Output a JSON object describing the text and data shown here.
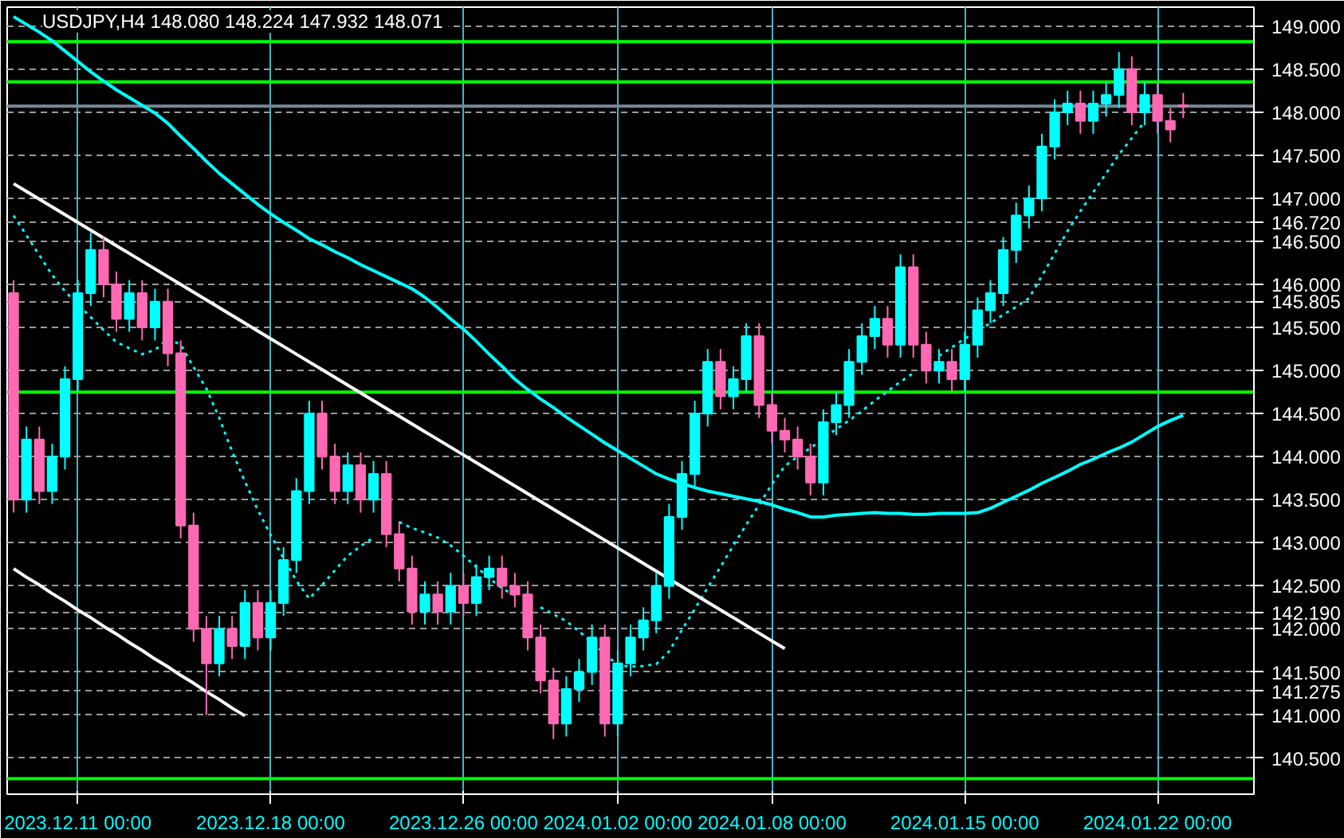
{
  "chart_data": {
    "type": "candlestick",
    "title": "USDJPY,H4  148.080 148.224 147.932 148.071",
    "categories": [
      null,
      null,
      null,
      null,
      null,
      "2023.12.11 00:00",
      null,
      null,
      null,
      null,
      null,
      null,
      null,
      null,
      null,
      null,
      null,
      null,
      null,
      null,
      "2023.12.18 00:00",
      null,
      null,
      null,
      null,
      null,
      null,
      null,
      null,
      null,
      null,
      null,
      null,
      null,
      null,
      "2023.12.26 00:00",
      null,
      null,
      null,
      null,
      null,
      null,
      null,
      null,
      null,
      null,
      null,
      "2024.01.02 00:00",
      null,
      null,
      null,
      null,
      null,
      null,
      null,
      null,
      null,
      null,
      null,
      "2024.01.08 00:00",
      null,
      null,
      null,
      null,
      null,
      null,
      null,
      null,
      null,
      null,
      null,
      null,
      null,
      null,
      "2024.01.15 00:00",
      null,
      null,
      null,
      null,
      null,
      null,
      null,
      null,
      null,
      null,
      null,
      null,
      null,
      null,
      "2024.01.22 00:00",
      null,
      null
    ],
    "ylim": [
      140.08,
      149.22
    ],
    "yticks": [
      {
        "value": 149,
        "label": "149.000"
      },
      {
        "value": 148.5,
        "label": "148.500"
      },
      {
        "value": 148,
        "label": "148.000"
      },
      {
        "value": 147.5,
        "label": "147.500"
      },
      {
        "value": 147,
        "label": "147.000"
      },
      {
        "value": 146.72,
        "label": "146.720"
      },
      {
        "value": 146.5,
        "label": "146.500"
      },
      {
        "value": 146,
        "label": "146.000"
      },
      {
        "value": 145.805,
        "label": "145.805"
      },
      {
        "value": 145.5,
        "label": "145.500"
      },
      {
        "value": 145,
        "label": "145.000"
      },
      {
        "value": 144.5,
        "label": "144.500"
      },
      {
        "value": 144,
        "label": "144.000"
      },
      {
        "value": 143.5,
        "label": "143.500"
      },
      {
        "value": 143,
        "label": "143.000"
      },
      {
        "value": 142.5,
        "label": "142.500"
      },
      {
        "value": 142.19,
        "label": "142.190"
      },
      {
        "value": 142,
        "label": "142.000"
      },
      {
        "value": 141.5,
        "label": "141.500"
      },
      {
        "value": 141.275,
        "label": "141.275"
      },
      {
        "value": 141,
        "label": "141.000"
      },
      {
        "value": 140.5,
        "label": "140.500"
      }
    ],
    "grid": true,
    "ref_lines": [
      {
        "axis": "y",
        "value": 148.353,
        "color": "#00ff00"
      },
      {
        "axis": "y",
        "value": 148.82,
        "color": "#00ff00"
      },
      {
        "axis": "y",
        "value": 144.75,
        "color": "#00ff00"
      },
      {
        "axis": "y",
        "value": 140.26,
        "color": "#00ff00"
      },
      {
        "axis": "y",
        "value": 148.071,
        "color": "#778899"
      }
    ],
    "ohlc": [
      [
        145.9,
        146.05,
        143.35,
        143.5
      ],
      [
        143.5,
        144.35,
        143.35,
        144.2
      ],
      [
        144.2,
        144.35,
        143.45,
        143.6
      ],
      [
        143.6,
        144.15,
        143.45,
        144.0
      ],
      [
        144.0,
        145.05,
        143.85,
        144.9
      ],
      [
        144.9,
        146.05,
        144.75,
        145.9
      ],
      [
        145.9,
        146.6,
        145.75,
        146.4
      ],
      [
        146.4,
        146.55,
        145.85,
        146.0
      ],
      [
        146.0,
        146.15,
        145.45,
        145.6
      ],
      [
        145.6,
        146.05,
        145.45,
        145.9
      ],
      [
        145.9,
        146.05,
        145.35,
        145.5
      ],
      [
        145.5,
        145.95,
        145.35,
        145.8
      ],
      [
        145.8,
        145.95,
        145.05,
        145.2
      ],
      [
        145.2,
        145.35,
        143.05,
        143.2
      ],
      [
        143.2,
        143.35,
        141.85,
        142.0
      ],
      [
        142.0,
        142.15,
        141.0,
        141.6
      ],
      [
        141.6,
        142.15,
        141.45,
        142.0
      ],
      [
        142.0,
        142.15,
        141.65,
        141.8
      ],
      [
        141.8,
        142.45,
        141.65,
        142.3
      ],
      [
        142.3,
        142.45,
        141.75,
        141.9
      ],
      [
        141.9,
        142.45,
        141.75,
        142.3
      ],
      [
        142.3,
        142.95,
        142.15,
        142.8
      ],
      [
        142.8,
        143.75,
        142.65,
        143.6
      ],
      [
        143.6,
        144.65,
        143.45,
        144.5
      ],
      [
        144.5,
        144.65,
        143.85,
        144.0
      ],
      [
        144.0,
        144.15,
        143.45,
        143.6
      ],
      [
        143.6,
        144.05,
        143.45,
        143.9
      ],
      [
        143.9,
        144.05,
        143.35,
        143.5
      ],
      [
        143.5,
        143.95,
        143.35,
        143.8
      ],
      [
        143.8,
        143.95,
        142.95,
        143.1
      ],
      [
        143.1,
        143.25,
        142.55,
        142.7
      ],
      [
        142.7,
        142.85,
        142.05,
        142.2
      ],
      [
        142.2,
        142.55,
        142.05,
        142.4
      ],
      [
        142.4,
        142.55,
        142.05,
        142.2
      ],
      [
        142.2,
        142.65,
        142.05,
        142.5
      ],
      [
        142.5,
        142.65,
        142.15,
        142.3
      ],
      [
        142.3,
        142.75,
        142.15,
        142.6
      ],
      [
        142.6,
        142.85,
        142.45,
        142.7
      ],
      [
        142.7,
        142.85,
        142.35,
        142.5
      ],
      [
        142.5,
        142.65,
        142.25,
        142.4
      ],
      [
        142.4,
        142.55,
        141.75,
        141.9
      ],
      [
        141.9,
        142.05,
        141.25,
        141.4
      ],
      [
        141.4,
        141.55,
        140.72,
        140.9
      ],
      [
        140.9,
        141.45,
        140.75,
        141.3
      ],
      [
        141.3,
        141.65,
        141.15,
        141.5
      ],
      [
        141.5,
        142.05,
        141.35,
        141.9
      ],
      [
        141.9,
        142.05,
        140.75,
        140.9
      ],
      [
        140.9,
        141.75,
        140.75,
        141.6
      ],
      [
        141.6,
        142.05,
        141.45,
        141.9
      ],
      [
        141.9,
        142.25,
        141.75,
        142.1
      ],
      [
        142.1,
        142.65,
        141.95,
        142.5
      ],
      [
        142.5,
        143.45,
        142.35,
        143.3
      ],
      [
        143.3,
        143.95,
        143.15,
        143.8
      ],
      [
        143.8,
        144.65,
        143.65,
        144.5
      ],
      [
        144.5,
        145.25,
        144.35,
        145.1
      ],
      [
        145.1,
        145.25,
        144.55,
        144.7
      ],
      [
        144.7,
        145.05,
        144.55,
        144.9
      ],
      [
        144.9,
        145.55,
        144.75,
        145.4
      ],
      [
        145.4,
        145.55,
        144.45,
        144.6
      ],
      [
        144.6,
        144.75,
        144.15,
        144.3
      ],
      [
        144.3,
        144.45,
        144.05,
        144.2
      ],
      [
        144.2,
        144.35,
        143.85,
        144.0
      ],
      [
        144.0,
        144.15,
        143.55,
        143.7
      ],
      [
        143.7,
        144.55,
        143.55,
        144.4
      ],
      [
        144.4,
        144.75,
        144.25,
        144.6
      ],
      [
        144.6,
        145.25,
        144.45,
        145.1
      ],
      [
        145.1,
        145.55,
        144.95,
        145.4
      ],
      [
        145.4,
        145.75,
        145.25,
        145.6
      ],
      [
        145.6,
        145.75,
        145.15,
        145.3
      ],
      [
        145.3,
        146.35,
        145.15,
        146.2
      ],
      [
        146.2,
        146.35,
        145.15,
        145.3
      ],
      [
        145.3,
        145.45,
        144.85,
        145.0
      ],
      [
        145.0,
        145.25,
        144.85,
        145.1
      ],
      [
        145.1,
        145.25,
        144.75,
        144.9
      ],
      [
        144.9,
        145.45,
        144.75,
        145.3
      ],
      [
        145.3,
        145.85,
        145.15,
        145.7
      ],
      [
        145.7,
        146.05,
        145.55,
        145.9
      ],
      [
        145.9,
        146.55,
        145.75,
        146.4
      ],
      [
        146.4,
        146.95,
        146.25,
        146.8
      ],
      [
        146.8,
        147.15,
        146.65,
        147.0
      ],
      [
        147.0,
        147.75,
        146.85,
        147.6
      ],
      [
        147.6,
        148.15,
        147.45,
        148.0
      ],
      [
        148.0,
        148.25,
        147.85,
        148.1
      ],
      [
        148.1,
        148.25,
        147.75,
        147.9
      ],
      [
        147.9,
        148.25,
        147.75,
        148.1
      ],
      [
        148.1,
        148.35,
        147.95,
        148.2
      ],
      [
        148.2,
        148.7,
        148.05,
        148.5
      ],
      [
        148.5,
        148.65,
        147.85,
        148.0
      ],
      [
        148.0,
        148.35,
        147.85,
        148.2
      ],
      [
        148.2,
        148.35,
        147.75,
        147.9
      ],
      [
        147.9,
        148.05,
        147.65,
        147.8
      ],
      [
        148.08,
        148.224,
        147.932,
        148.071
      ]
    ],
    "colors": [
      "#ff69b4",
      "#00ffff",
      "#ff69b4",
      "#00ffff",
      "#00ffff",
      "#00ffff",
      "#00ffff",
      "#ff69b4",
      "#ff69b4",
      "#00ffff",
      "#ff69b4",
      "#00ffff",
      "#ff69b4",
      "#ff69b4",
      "#ff69b4",
      "#ff69b4",
      "#00ffff",
      "#ff69b4",
      "#00ffff",
      "#ff69b4",
      "#00ffff",
      "#00ffff",
      "#00ffff",
      "#00ffff",
      "#ff69b4",
      "#ff69b4",
      "#00ffff",
      "#ff69b4",
      "#00ffff",
      "#ff69b4",
      "#ff69b4",
      "#ff69b4",
      "#00ffff",
      "#ff69b4",
      "#00ffff",
      "#ff69b4",
      "#00ffff",
      "#00ffff",
      "#ff69b4",
      "#ff69b4",
      "#ff69b4",
      "#ff69b4",
      "#ff69b4",
      "#00ffff",
      "#00ffff",
      "#00ffff",
      "#ff69b4",
      "#00ffff",
      "#00ffff",
      "#00ffff",
      "#00ffff",
      "#00ffff",
      "#00ffff",
      "#00ffff",
      "#00ffff",
      "#ff69b4",
      "#00ffff",
      "#00ffff",
      "#ff69b4",
      "#ff69b4",
      "#ff69b4",
      "#ff69b4",
      "#ff69b4",
      "#00ffff",
      "#00ffff",
      "#00ffff",
      "#00ffff",
      "#00ffff",
      "#ff69b4",
      "#00ffff",
      "#ff69b4",
      "#ff69b4",
      "#00ffff",
      "#ff69b4",
      "#00ffff",
      "#00ffff",
      "#00ffff",
      "#00ffff",
      "#00ffff",
      "#00ffff",
      "#00ffff",
      "#00ffff",
      "#00ffff",
      "#ff69b4",
      "#00ffff",
      "#00ffff",
      "#00ffff",
      "#ff69b4",
      "#00ffff",
      "#ff69b4",
      "#ff69b4",
      "#ff69b4"
    ],
    "series": [
      {
        "type": "line",
        "color": "#00ffff",
        "values": [
          149.11,
          149.02,
          148.93,
          148.83,
          148.71,
          148.59,
          148.47,
          148.36,
          148.26,
          148.17,
          148.08,
          147.99,
          147.87,
          147.72,
          147.58,
          147.43,
          147.29,
          147.17,
          147.05,
          146.93,
          146.82,
          146.72,
          146.63,
          146.53,
          146.46,
          146.38,
          146.31,
          146.23,
          146.16,
          146.09,
          146.02,
          145.95,
          145.85,
          145.73,
          145.6,
          145.48,
          145.34,
          145.19,
          145.05,
          144.9,
          144.78,
          144.67,
          144.57,
          144.46,
          144.36,
          144.26,
          144.16,
          144.07,
          143.98,
          143.89,
          143.8,
          143.74,
          143.69,
          143.64,
          143.6,
          143.57,
          143.54,
          143.51,
          143.48,
          143.44,
          143.39,
          143.35,
          143.3,
          143.3,
          143.32,
          143.33,
          143.34,
          143.35,
          143.34,
          143.34,
          143.33,
          143.33,
          143.34,
          143.34,
          143.34,
          143.35,
          143.4,
          143.47,
          143.54,
          143.61,
          143.69,
          143.76,
          143.83,
          143.91,
          143.97,
          144.04,
          144.1,
          144.17,
          144.26,
          144.35,
          144.42,
          144.48
        ]
      },
      {
        "type": "line",
        "color": "#00ffff",
        "line_style": "dotted",
        "values": [
          146.8,
          146.57,
          146.34,
          146.11,
          145.92,
          145.77,
          145.62,
          145.47,
          145.33,
          145.26,
          145.19,
          145.24,
          145.37,
          145.3,
          145.04,
          144.79,
          144.45,
          144.06,
          143.71,
          143.38,
          143.09,
          142.82,
          142.56,
          142.35,
          142.51,
          142.68,
          142.85,
          142.96,
          143.06,
          null,
          143.24,
          143.17,
          143.12,
          143.06,
          142.97,
          142.85,
          142.72,
          142.59,
          142.47,
          142.39,
          null,
          142.25,
          142.17,
          142.09,
          141.97,
          141.84,
          141.71,
          141.58,
          141.56,
          141.57,
          141.59,
          141.74,
          141.99,
          142.23,
          142.48,
          142.72,
          142.97,
          143.21,
          143.44,
          143.68,
          143.89,
          144.0,
          144.1,
          144.21,
          144.32,
          144.42,
          144.53,
          144.65,
          144.76,
          144.87,
          144.97,
          null,
          145.17,
          145.27,
          145.37,
          145.46,
          145.55,
          145.65,
          145.74,
          145.84,
          146.1,
          146.36,
          146.62,
          146.85,
          147.07,
          147.29,
          147.51,
          147.7,
          147.89,
          null,
          null,
          null
        ]
      },
      {
        "type": "line",
        "color": "#ffffff",
        "values": [
          147.17,
          147.08,
          146.99,
          146.9,
          146.81,
          146.72,
          146.63,
          146.54,
          146.45,
          146.36,
          146.27,
          146.18,
          146.09,
          146.0,
          145.91,
          145.82,
          145.73,
          145.64,
          145.55,
          145.46,
          145.37,
          145.28,
          145.19,
          145.1,
          145.01,
          144.92,
          144.83,
          144.74,
          144.65,
          144.56,
          144.47,
          144.38,
          144.29,
          144.2,
          144.11,
          144.02,
          143.93,
          143.84,
          143.75,
          143.66,
          143.57,
          143.48,
          143.39,
          143.3,
          143.21,
          143.12,
          143.03,
          142.94,
          142.85,
          142.76,
          142.67,
          142.58,
          142.49,
          142.4,
          142.31,
          142.22,
          142.13,
          142.04,
          141.95,
          141.86,
          141.77,
          null,
          null,
          null,
          null,
          null,
          null,
          null,
          null,
          null,
          null,
          null,
          null,
          null,
          null,
          null,
          null,
          null,
          null,
          null,
          null,
          null,
          null,
          null,
          null,
          null,
          null,
          null,
          null,
          null,
          null,
          null
        ]
      },
      {
        "type": "line",
        "color": "#ffffff",
        "values": [
          142.7,
          142.6,
          142.51,
          142.41,
          142.32,
          142.22,
          142.13,
          142.03,
          141.94,
          141.84,
          141.75,
          141.65,
          141.56,
          141.46,
          141.37,
          141.27,
          141.18,
          141.08,
          140.99,
          null,
          null,
          null,
          null,
          null,
          null,
          null,
          null,
          null,
          null,
          null,
          null,
          null,
          null,
          null,
          null,
          null,
          null,
          null,
          null,
          null,
          null,
          null,
          null,
          null,
          null,
          null,
          null,
          null,
          null,
          null,
          null,
          null,
          null,
          null,
          null,
          null,
          null,
          null,
          null,
          null,
          null,
          null,
          null,
          null,
          null,
          null,
          null,
          null,
          null,
          null,
          null,
          null,
          null,
          null,
          null,
          null,
          null,
          null,
          null,
          null,
          null,
          null,
          null,
          null,
          null,
          null,
          null,
          null,
          null,
          null,
          null,
          null
        ]
      }
    ]
  }
}
